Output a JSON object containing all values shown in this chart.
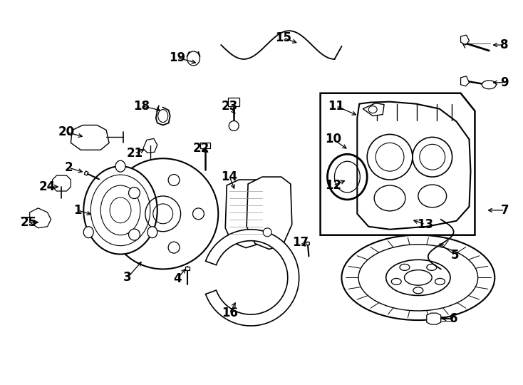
{
  "background_color": "#ffffff",
  "line_color": "#000000",
  "fig_width": 7.34,
  "fig_height": 5.4,
  "dpi": 100,
  "font_size": 12,
  "font_weight": "bold",
  "callouts": [
    [
      "1",
      108,
      295,
      130,
      302
    ],
    [
      "2",
      95,
      235,
      118,
      242
    ],
    [
      "3",
      178,
      390,
      200,
      365
    ],
    [
      "4",
      248,
      392,
      262,
      375
    ],
    [
      "5",
      640,
      358,
      615,
      340
    ],
    [
      "6",
      638,
      448,
      618,
      448
    ],
    [
      "7",
      710,
      295,
      683,
      295
    ],
    [
      "8",
      710,
      62,
      690,
      62
    ],
    [
      "9",
      710,
      115,
      690,
      115
    ],
    [
      "10",
      468,
      195,
      490,
      210
    ],
    [
      "11",
      472,
      148,
      504,
      162
    ],
    [
      "12",
      468,
      260,
      488,
      252
    ],
    [
      "13",
      598,
      315,
      578,
      308
    ],
    [
      "14",
      322,
      248,
      330,
      268
    ],
    [
      "15",
      398,
      52,
      420,
      60
    ],
    [
      "16",
      322,
      440,
      332,
      422
    ],
    [
      "17",
      422,
      340,
      432,
      348
    ],
    [
      "18",
      198,
      148,
      228,
      155
    ],
    [
      "19",
      248,
      80,
      278,
      88
    ],
    [
      "20",
      92,
      185,
      118,
      192
    ],
    [
      "21",
      188,
      215,
      205,
      208
    ],
    [
      "22",
      282,
      208,
      295,
      215
    ],
    [
      "23",
      322,
      148,
      332,
      162
    ],
    [
      "24",
      65,
      262,
      84,
      262
    ],
    [
      "25",
      38,
      312,
      56,
      312
    ]
  ]
}
